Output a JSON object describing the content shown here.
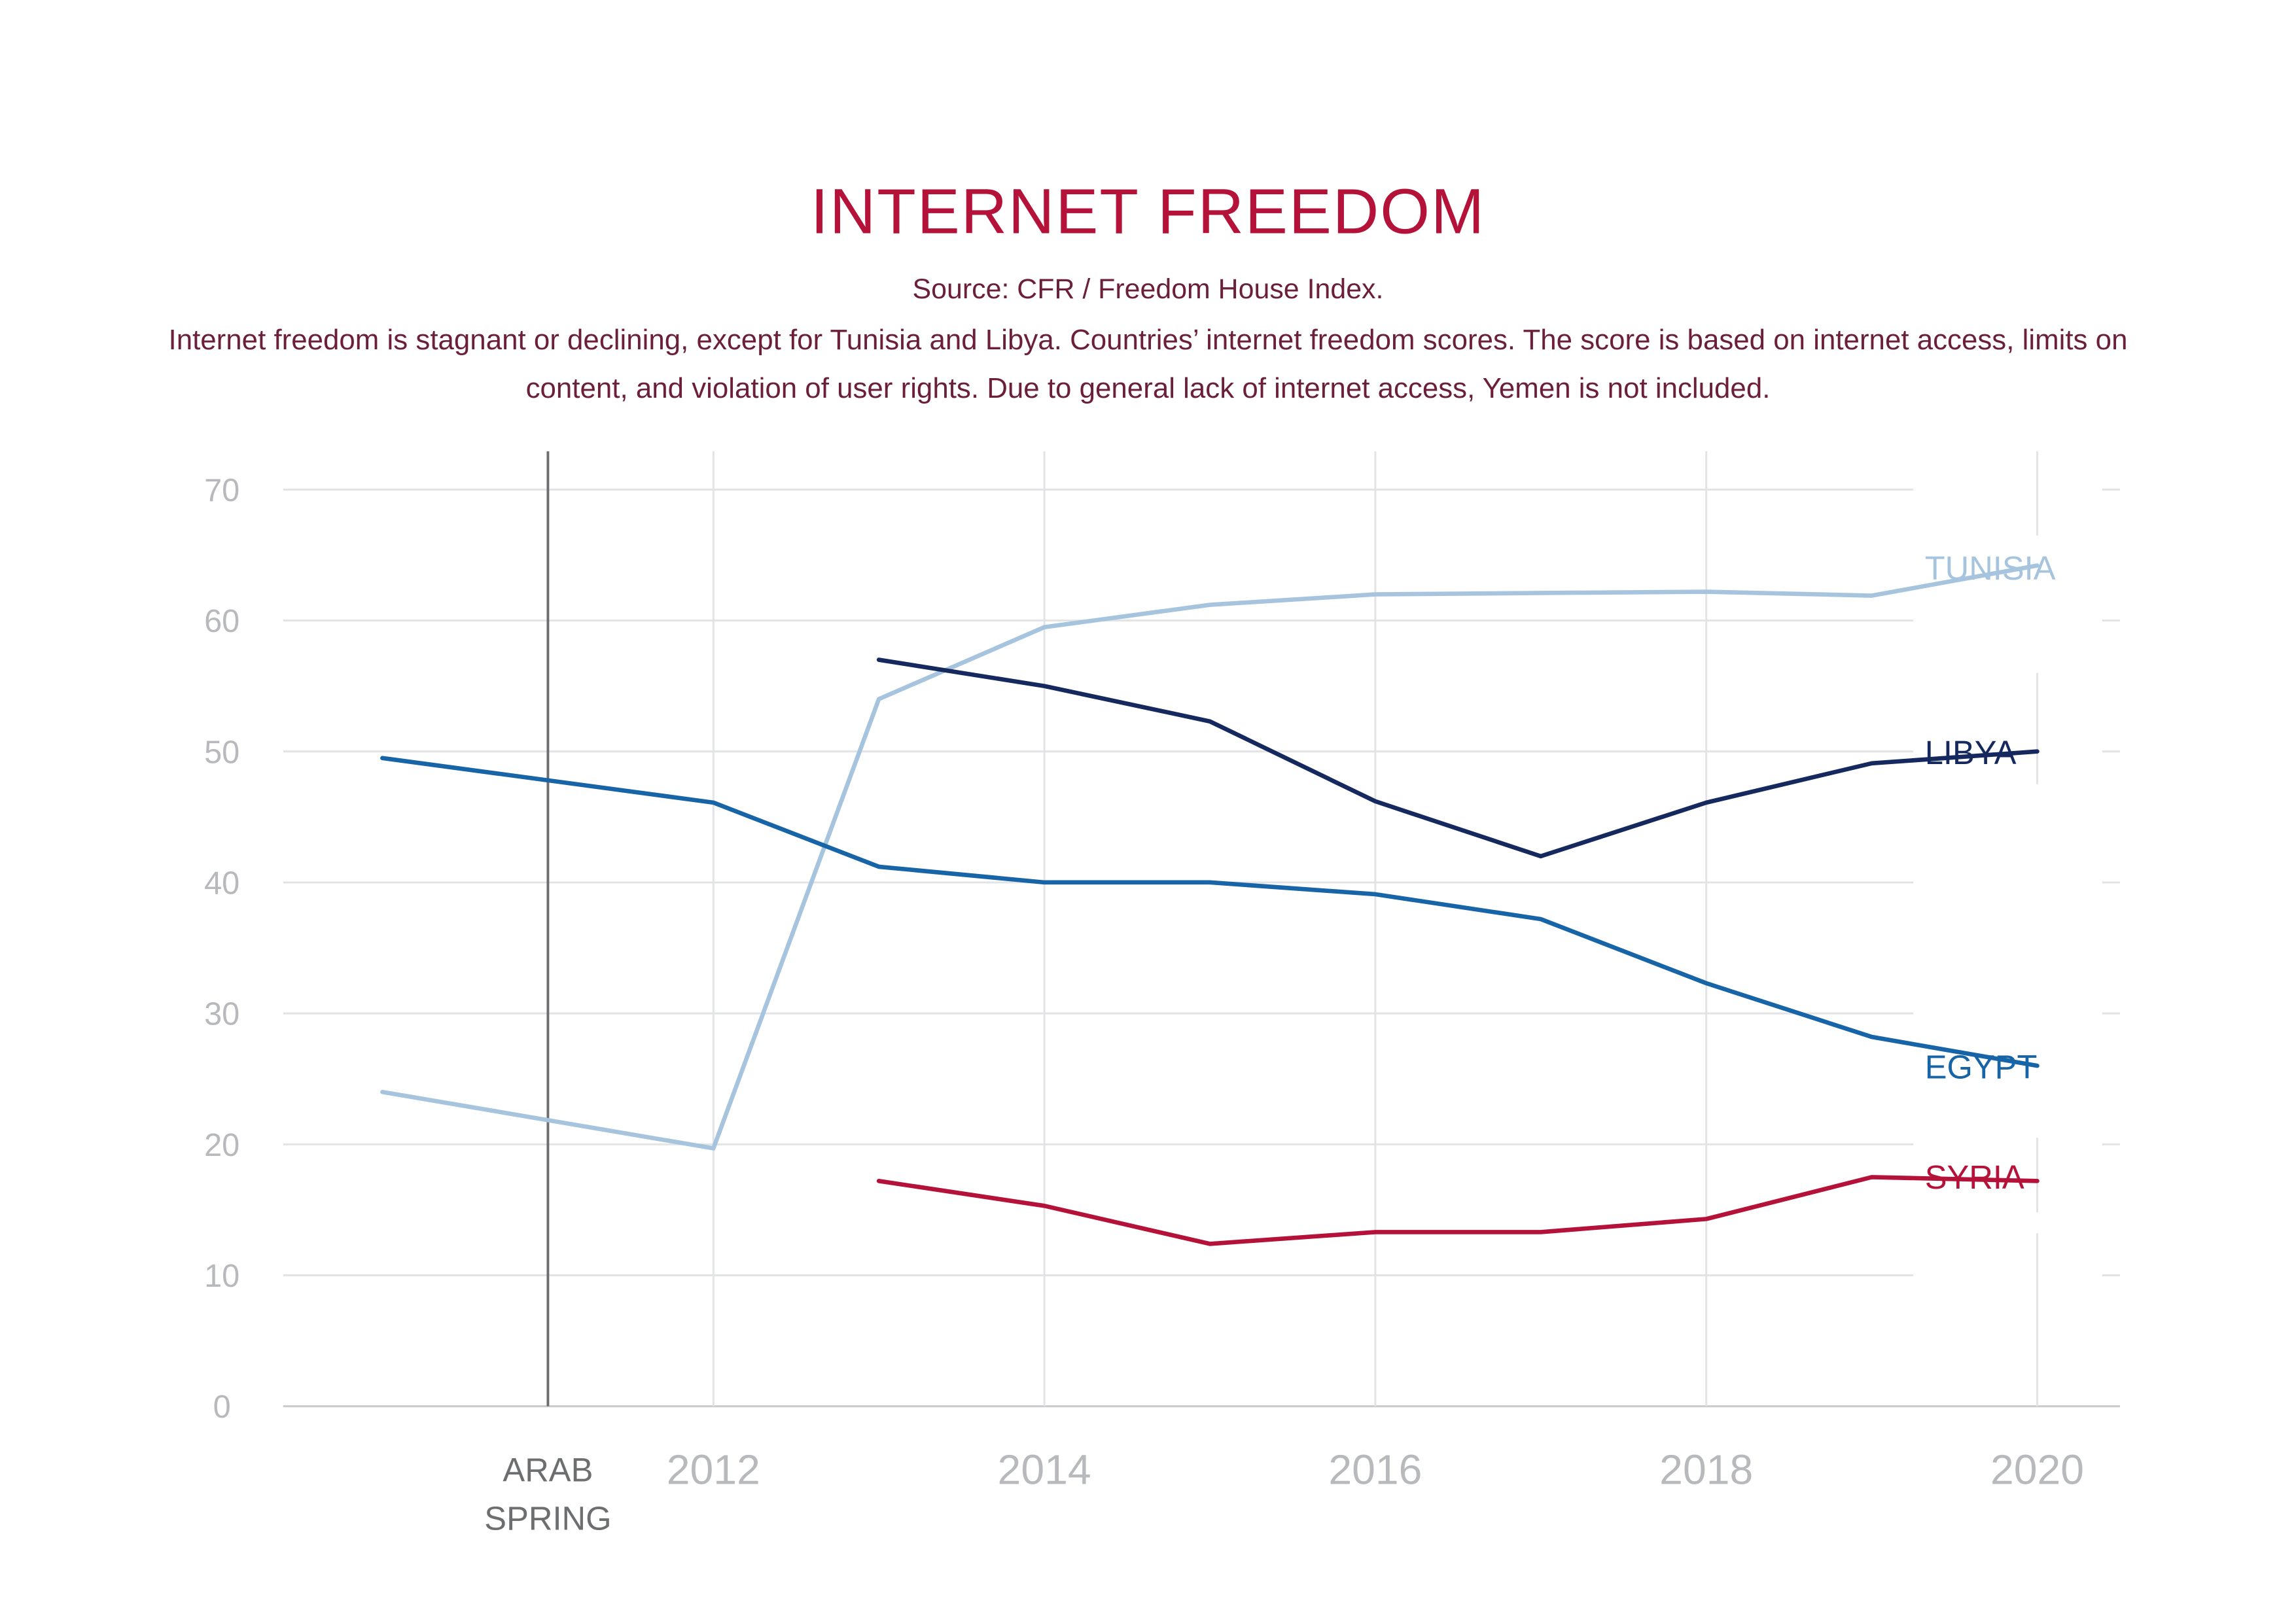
{
  "chart_data": {
    "type": "line",
    "title": "INTERNET FREEDOM",
    "subtitle": "Source: CFR / Freedom House Index.",
    "description": "Internet freedom is stagnant or declining, except for Tunisia and Libya. Countries’ internet freedom scores. The score is based on internet access, limits on content, and violation of user rights. Due to general lack of internet access, Yemen is not included.",
    "xlabel": "",
    "ylabel": "",
    "ylim": [
      0,
      70
    ],
    "xlim": [
      2009.4,
      2020.5
    ],
    "yticks": [
      "0",
      "10",
      "20",
      "30",
      "40",
      "50",
      "60",
      "70"
    ],
    "xticks": [
      "2012",
      "2014",
      "2016",
      "2018",
      "2020"
    ],
    "grid": true,
    "legend": "inline labels at line ends (right)",
    "event": {
      "x": 2011,
      "label_line1": "ARAB",
      "label_line2": "SPRING"
    },
    "series": [
      {
        "name": "TUNISIA",
        "color": "#a7c4de",
        "x": [
          2010,
          2012,
          2013,
          2014,
          2015,
          2016,
          2017,
          2018,
          2019,
          2020
        ],
        "y": [
          24,
          19.7,
          54,
          59.5,
          61.2,
          62,
          62.1,
          62.2,
          61.9,
          64.2
        ]
      },
      {
        "name": "LIBYA",
        "color": "#15295e",
        "x": [
          2013,
          2014,
          2015,
          2016,
          2017,
          2018,
          2019,
          2020
        ],
        "y": [
          57,
          55,
          52.3,
          46.2,
          42,
          46.1,
          49.1,
          50
        ]
      },
      {
        "name": "EGYPT",
        "color": "#1764a7",
        "x": [
          2010,
          2012,
          2013,
          2014,
          2015,
          2016,
          2017,
          2018,
          2019,
          2020
        ],
        "y": [
          49.5,
          46.1,
          41.2,
          40,
          40,
          39.1,
          37.2,
          32.3,
          28.2,
          26
        ]
      },
      {
        "name": "SYRIA",
        "color": "#b5123a",
        "x": [
          2013,
          2014,
          2015,
          2016,
          2017,
          2018,
          2019,
          2020
        ],
        "y": [
          17.2,
          15.3,
          12.4,
          13.3,
          13.3,
          14.3,
          17.5,
          17.2
        ]
      }
    ]
  }
}
